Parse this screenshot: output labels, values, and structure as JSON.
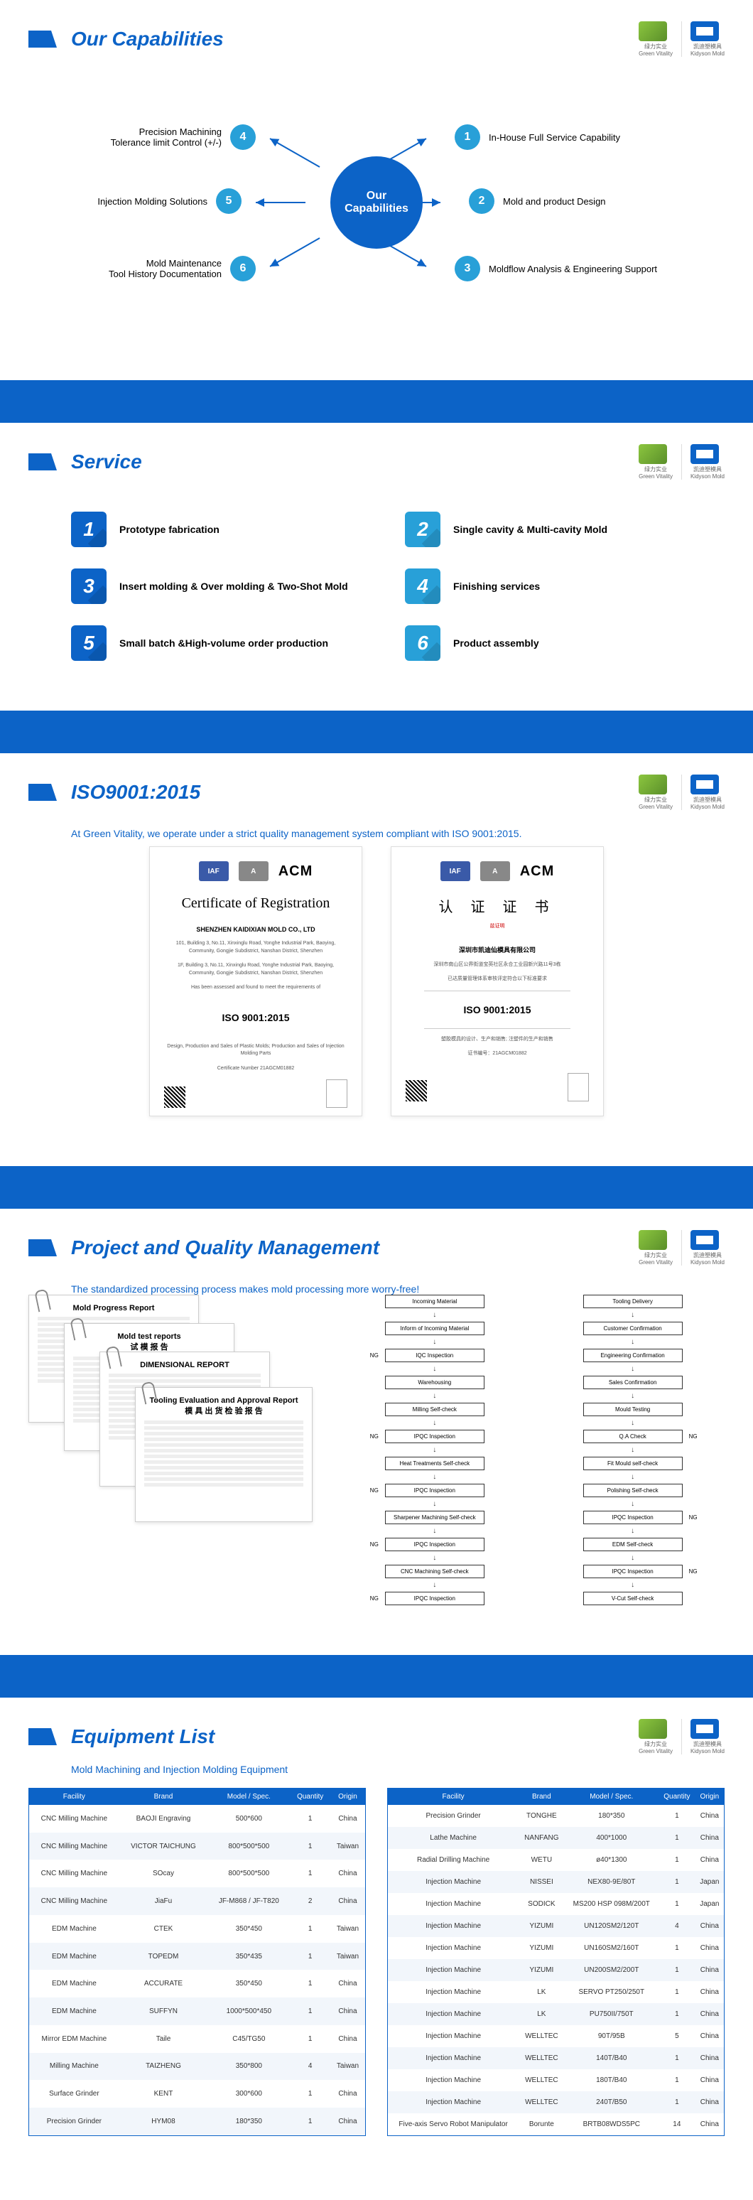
{
  "brand": {
    "left_label": "绿力实业",
    "left_en": "Green Vitality",
    "right_label": "凯迪塑模具",
    "right_en": "Kidyson Mold"
  },
  "colors": {
    "primary": "#0c63c7",
    "accent": "#28a0d8",
    "svc_alt": "#1b9cd3"
  },
  "capabilities": {
    "title": "Our Capabilities",
    "center": {
      "line1": "Our",
      "line2": "Capabilities"
    },
    "items": [
      {
        "n": "1",
        "text": "In-House Full Service Capability"
      },
      {
        "n": "2",
        "text": "Mold and product Design"
      },
      {
        "n": "3",
        "text": "Moldflow Analysis & Engineering Support"
      },
      {
        "n": "4",
        "text": "Precision Machining\nTolerance limit  Control (+/-)"
      },
      {
        "n": "5",
        "text": "Injection Molding Solutions"
      },
      {
        "n": "6",
        "text": "Mold Maintenance\nTool History Documentation"
      }
    ]
  },
  "service": {
    "title": "Service",
    "items": [
      {
        "n": "1",
        "text": "Prototype fabrication",
        "color": "#0c63c7"
      },
      {
        "n": "2",
        "text": "Single cavity & Multi-cavity Mold",
        "color": "#28a0d8"
      },
      {
        "n": "3",
        "text": "Insert molding & Over molding & Two-Shot Mold",
        "color": "#0c63c7"
      },
      {
        "n": "4",
        "text": "Finishing services",
        "color": "#28a0d8"
      },
      {
        "n": "5",
        "text": "Small batch &High-volume order production",
        "color": "#0c63c7"
      },
      {
        "n": "6",
        "text": "Product assembly",
        "color": "#28a0d8"
      }
    ]
  },
  "iso": {
    "title": "ISO9001:2015",
    "subtitle": "At Green Vitality, we operate under a strict quality management system compliant with ISO 9001:2015.",
    "cert1": {
      "iaf": "IAF",
      "acm": "ACM",
      "title": "Certificate of Registration",
      "company": "SHENZHEN KAIDIXIAN MOLD CO., LTD",
      "addr1": "101, Building 3, No.11, Xinxinglu Road, Yonghe Industrial Park, Baoying, Community, Gongjie Subdistrict, Nanshan District, Shenzhen",
      "addr2": "1F, Building 3, No.11, Xinxinglu Road, Yonghe Industrial Park, Baoying, Community, Gongjie Subdistrict, Nanshan District, Shenzhen",
      "meets": "Has been assessed and found to meet the requirements of",
      "iso": "ISO 9001:2015",
      "scope": "Design, Production and Sales of Plastic Molds; Production and Sales of Injection Molding Parts",
      "certno": "Certificate Number 21AGCM01882"
    },
    "cert2": {
      "iaf": "IAF",
      "acm": "ACM",
      "title": "认  证  证  书",
      "sub": "兹证明",
      "company": "深圳市凯迪仙模具有限公司",
      "addr1": "深圳市南山区公界街道宝英社区永合工业园新兴路11号3栋",
      "meets": "已达质量管理体系审核评定符合以下标准要求",
      "iso": "ISO 9001:2015",
      "scope": "塑胶模具的设计、生产和销售; 注塑件的生产和销售",
      "certno": "证书编号：21AGCM01882"
    }
  },
  "pm": {
    "title": "Project and Quality Management",
    "subtitle": "The standardized processing process makes mold processing more worry-free!",
    "docs": [
      {
        "title": "Mold Progress Report"
      },
      {
        "title": "Mold test reports\n试 模 报 告"
      },
      {
        "title": "DIMENSIONAL REPORT"
      },
      {
        "title": "Tooling Evaluation and Approval Report\n模 具 出 货 检 验 报 告"
      }
    ],
    "flow1": [
      {
        "box": "Incoming Material"
      },
      {
        "box": "Inform of Incoming Material"
      },
      {
        "box": "IQC Inspection",
        "ng_left": true
      },
      {
        "box": "Warehousing"
      },
      {
        "box": "Milling Self-check"
      },
      {
        "box": "IPQC Inspection",
        "ng_left": true
      },
      {
        "box": "Heat Treatments Self-check"
      },
      {
        "box": "IPQC Inspection",
        "ng_left": true
      },
      {
        "box": "Sharpener Machining Self-check"
      },
      {
        "box": "IPQC Inspection",
        "ng_left": true
      },
      {
        "box": "CNC Machining Self-check"
      },
      {
        "box": "IPQC Inspection",
        "ng_left": true
      }
    ],
    "flow2": [
      {
        "box": "Tooling Delivery"
      },
      {
        "box": "Customer Confirmation"
      },
      {
        "box": "Engineering Confirmation"
      },
      {
        "box": "Sales Confirmation"
      },
      {
        "box": "Mould Testing"
      },
      {
        "box": "Q.A Check",
        "ng_right": true
      },
      {
        "box": "Fit Mould self-check"
      },
      {
        "box": "Polishing Self-check"
      },
      {
        "box": "IPQC Inspection",
        "ng_right": true
      },
      {
        "box": "EDM Self-check"
      },
      {
        "box": "IPQC Inspection",
        "ng_right": true
      },
      {
        "box": "V-Cut Self-check"
      }
    ]
  },
  "equipment": {
    "title": "Equipment List",
    "subtitle": "Mold Machining and Injection Molding Equipment",
    "headers": [
      "Facility",
      "Brand",
      "Model / Spec.",
      "Quantity",
      "Origin"
    ],
    "left": [
      [
        "CNC Milling Machine",
        "BAOJI Engraving",
        "500*600",
        "1",
        "China"
      ],
      [
        "CNC Milling Machine",
        "VICTOR TAICHUNG",
        "800*500*500",
        "1",
        "Taiwan"
      ],
      [
        "CNC Milling Machine",
        "SOcay",
        "800*500*500",
        "1",
        "China"
      ],
      [
        "CNC Milling Machine",
        "JiaFu",
        "JF-M868 / JF-T820",
        "2",
        "China"
      ],
      [
        "EDM Machine",
        "CTEK",
        "350*450",
        "1",
        "Taiwan"
      ],
      [
        "EDM Machine",
        "TOPEDM",
        "350*435",
        "1",
        "Taiwan"
      ],
      [
        "EDM Machine",
        "ACCURATE",
        "350*450",
        "1",
        "China"
      ],
      [
        "EDM Machine",
        "SUFFYN",
        "1000*500*450",
        "1",
        "China"
      ],
      [
        "Mirror EDM Machine",
        "Taile",
        "C45/TG50",
        "1",
        "China"
      ],
      [
        "Milling Machine",
        "TAIZHENG",
        "350*800",
        "4",
        "Taiwan"
      ],
      [
        "Surface Grinder",
        "KENT",
        "300*600",
        "1",
        "China"
      ],
      [
        "Precision Grinder",
        "HYM08",
        "180*350",
        "1",
        "China"
      ]
    ],
    "right": [
      [
        "Precision Grinder",
        "TONGHE",
        "180*350",
        "1",
        "China"
      ],
      [
        "Lathe Machine",
        "NANFANG",
        "400*1000",
        "1",
        "China"
      ],
      [
        "Radial Drilling Machine",
        "WETU",
        "ø40*1300",
        "1",
        "China"
      ],
      [
        "Injection Machine",
        "NISSEI",
        "NEX80-9E/80T",
        "1",
        "Japan"
      ],
      [
        "Injection Machine",
        "SODICK",
        "MS200 HSP 098M/200T",
        "1",
        "Japan"
      ],
      [
        "Injection Machine",
        "YIZUMI",
        "UN120SM2/120T",
        "4",
        "China"
      ],
      [
        "Injection Machine",
        "YIZUMI",
        "UN160SM2/160T",
        "1",
        "China"
      ],
      [
        "Injection Machine",
        "YIZUMI",
        "UN200SM2/200T",
        "1",
        "China"
      ],
      [
        "Injection Machine",
        "LK",
        "SERVO PT250/250T",
        "1",
        "China"
      ],
      [
        "Injection Machine",
        "LK",
        "PU750II/750T",
        "1",
        "China"
      ],
      [
        "Injection Machine",
        "WELLTEC",
        "90T/95B",
        "5",
        "China"
      ],
      [
        "Injection Machine",
        "WELLTEC",
        "140T/B40",
        "1",
        "China"
      ],
      [
        "Injection Machine",
        "WELLTEC",
        "180T/B40",
        "1",
        "China"
      ],
      [
        "Injection Machine",
        "WELLTEC",
        "240T/B50",
        "1",
        "China"
      ],
      [
        "Five-axis Servo Robot Manipulator",
        "Borunte",
        "BRTB08WDS5PC",
        "14",
        "China"
      ]
    ]
  }
}
